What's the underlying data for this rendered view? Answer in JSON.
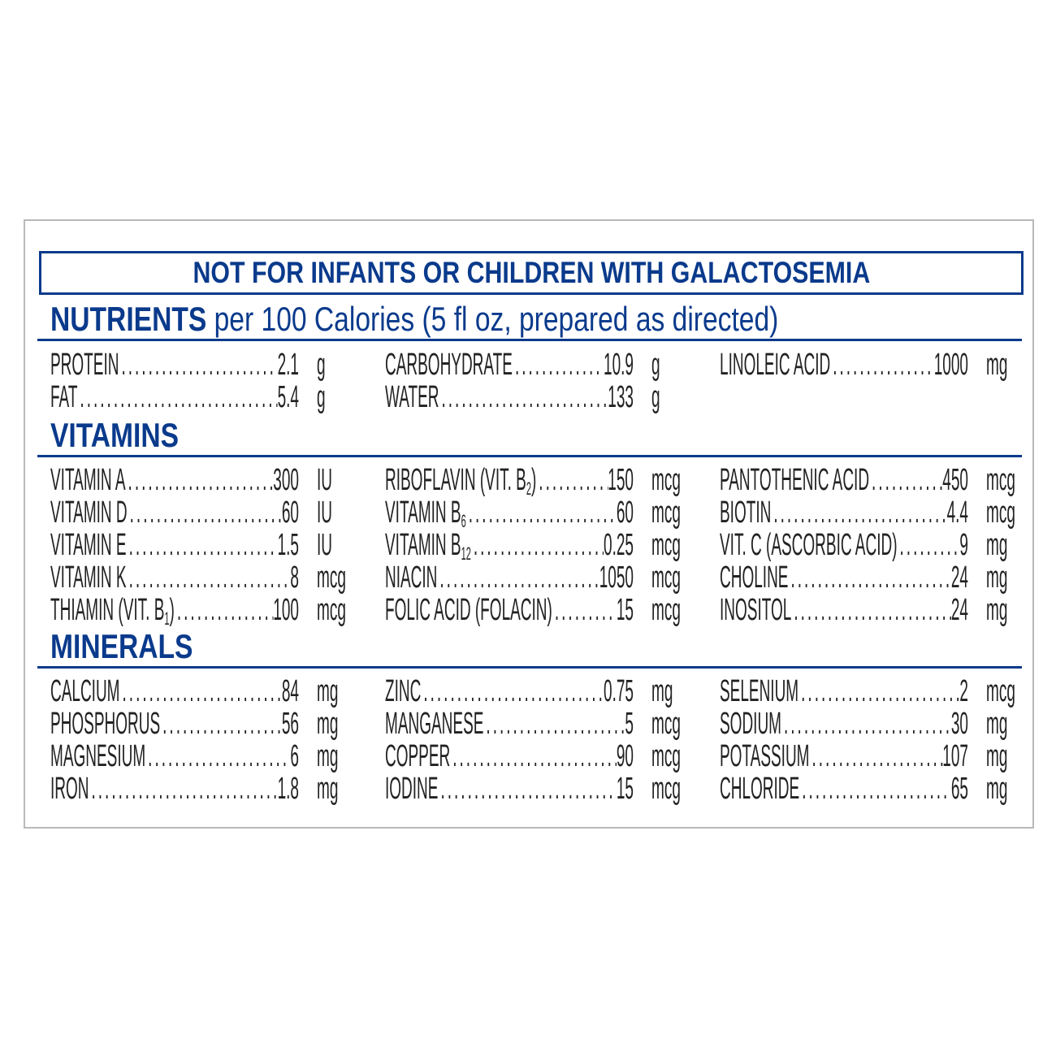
{
  "banner": "NOT FOR INFANTS OR CHILDREN WITH GALACTOSEMIA",
  "nutrients": {
    "title": "NUTRIENTS",
    "subtitle": "per 100 Calories (5 fl oz, prepared as directed)",
    "columns": [
      [
        {
          "label": "PROTEIN",
          "value": "2.1",
          "unit": "g"
        },
        {
          "label": "FAT",
          "value": "5.4",
          "unit": "g"
        }
      ],
      [
        {
          "label": "CARBOHYDRATE",
          "value": "10.9",
          "unit": "g"
        },
        {
          "label": "WATER",
          "value": "133",
          "unit": "g"
        }
      ],
      [
        {
          "label": "LINOLEIC ACID",
          "value": "1000",
          "unit": "mg"
        }
      ]
    ]
  },
  "vitamins": {
    "title": "VITAMINS",
    "columns": [
      [
        {
          "label": "VITAMIN A",
          "value": "300",
          "unit": "IU"
        },
        {
          "label": "VITAMIN D",
          "value": "60",
          "unit": "IU"
        },
        {
          "label": "VITAMIN E",
          "value": "1.5",
          "unit": "IU"
        },
        {
          "label": "VITAMIN K",
          "value": "8",
          "unit": "mcg"
        },
        {
          "label": "THIAMIN (VIT. B",
          "sub": "1",
          "post": ")",
          "value": "100",
          "unit": "mcg"
        }
      ],
      [
        {
          "label": "RIBOFLAVIN (VIT. B",
          "sub": "2",
          "post": ")",
          "value": "150",
          "unit": "mcg"
        },
        {
          "label": "VITAMIN B",
          "sub": "6",
          "value": "60",
          "unit": "mcg"
        },
        {
          "label": "VITAMIN B",
          "sub": "12",
          "value": "0.25",
          "unit": "mcg"
        },
        {
          "label": "NIACIN",
          "value": "1050",
          "unit": "mcg"
        },
        {
          "label": "FOLIC ACID (FOLACIN)",
          "value": "15",
          "unit": "mcg"
        }
      ],
      [
        {
          "label": "PANTOTHENIC ACID",
          "value": "450",
          "unit": "mcg"
        },
        {
          "label": "BIOTIN",
          "value": "4.4",
          "unit": "mcg"
        },
        {
          "label": "VIT. C (ASCORBIC ACID)",
          "value": "9",
          "unit": "mg"
        },
        {
          "label": "CHOLINE",
          "value": "24",
          "unit": "mg"
        },
        {
          "label": "INOSITOL",
          "value": "24",
          "unit": "mg"
        }
      ]
    ]
  },
  "minerals": {
    "title": "MINERALS",
    "columns": [
      [
        {
          "label": "CALCIUM",
          "value": "84",
          "unit": "mg"
        },
        {
          "label": "PHOSPHORUS",
          "value": "56",
          "unit": "mg"
        },
        {
          "label": "MAGNESIUM",
          "value": "6",
          "unit": "mg"
        },
        {
          "label": "IRON",
          "value": "1.8",
          "unit": "mg"
        }
      ],
      [
        {
          "label": "ZINC",
          "value": "0.75",
          "unit": "mg"
        },
        {
          "label": "MANGANESE",
          "value": "5",
          "unit": "mcg"
        },
        {
          "label": "COPPER",
          "value": "90",
          "unit": "mcg"
        },
        {
          "label": "IODINE",
          "value": "15",
          "unit": "mcg"
        }
      ],
      [
        {
          "label": "SELENIUM",
          "value": "2",
          "unit": "mcg"
        },
        {
          "label": "SODIUM",
          "value": "30",
          "unit": "mg"
        },
        {
          "label": "POTASSIUM",
          "value": "107",
          "unit": "mg"
        },
        {
          "label": "CHLORIDE",
          "value": "65",
          "unit": "mg"
        }
      ]
    ]
  },
  "colors": {
    "accent": "#0a3a8c",
    "text": "#222222",
    "border": "#b9b9b9"
  }
}
